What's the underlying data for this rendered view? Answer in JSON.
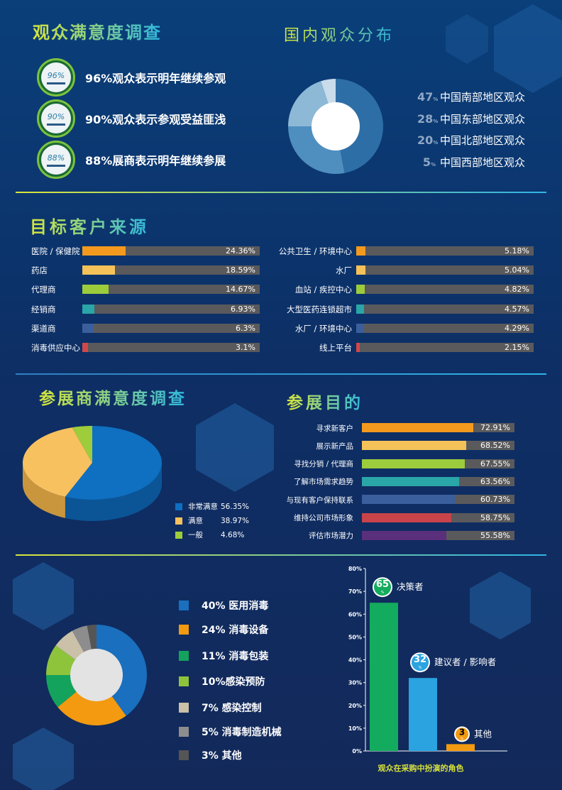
{
  "satisfaction": {
    "title": "观众满意度调查",
    "items": [
      {
        "badge": "96%",
        "text": "96%观众表示明年继续参观"
      },
      {
        "badge": "90%",
        "text": "90%观众表示参观受益匪浅"
      },
      {
        "badge": "88%",
        "text": "88%展商表示明年继续参展"
      }
    ]
  },
  "distribution": {
    "title": "国内观众分布",
    "items": [
      {
        "num": "47",
        "unit": "%",
        "label": "中国南部地区观众",
        "value": 47,
        "color": "#2e6ea6"
      },
      {
        "num": "28",
        "unit": "%",
        "label": "中国东部地区观众",
        "value": 28,
        "color": "#4f8fc0"
      },
      {
        "num": "20",
        "unit": "%",
        "label": "中国北部地区观众",
        "value": 20,
        "color": "#8db8d6"
      },
      {
        "num": "5",
        "unit": "%",
        "label": "中国西部地区观众",
        "value": 5,
        "color": "#c9dcec"
      }
    ]
  },
  "sources": {
    "title": "目标客户来源",
    "left": [
      {
        "label": "医院 / 保健院",
        "value": 24.36,
        "text": "24.36%",
        "color": "#f39a1e"
      },
      {
        "label": "药店",
        "value": 18.59,
        "text": "18.59%",
        "color": "#f5c25a"
      },
      {
        "label": "代理商",
        "value": 14.67,
        "text": "14.67%",
        "color": "#9ccc3c"
      },
      {
        "label": "经销商",
        "value": 6.93,
        "text": "6.93%",
        "color": "#2aa6a8"
      },
      {
        "label": "渠道商",
        "value": 6.3,
        "text": "6.3%",
        "color": "#3a5f9c"
      },
      {
        "label": "消毒供应中心",
        "value": 3.1,
        "text": "3.1%",
        "color": "#d2474a"
      }
    ],
    "right": [
      {
        "label": "公共卫生 / 环境中心",
        "value": 5.18,
        "text": "5.18%",
        "color": "#f39a1e"
      },
      {
        "label": "水厂",
        "value": 5.04,
        "text": "5.04%",
        "color": "#f5c25a"
      },
      {
        "label": "血站 / 疾控中心",
        "value": 4.82,
        "text": "4.82%",
        "color": "#9ccc3c"
      },
      {
        "label": "大型医药连锁超市",
        "value": 4.57,
        "text": "4.57%",
        "color": "#2aa6a8"
      },
      {
        "label": "水厂 / 环境中心",
        "value": 4.29,
        "text": "4.29%",
        "color": "#3a5f9c"
      },
      {
        "label": "线上平台",
        "value": 2.15,
        "text": "2.15%",
        "color": "#d2474a"
      }
    ]
  },
  "exhibitor": {
    "title": "参展商满意度调查",
    "slices": [
      {
        "name": "非常满意",
        "value": 56.35,
        "text": "56.35%",
        "color": "#0f6fc0",
        "side": "#0b5597"
      },
      {
        "name": "满意",
        "value": 38.97,
        "text": "38.97%",
        "color": "#f7c15f",
        "side": "#c9963e"
      },
      {
        "name": "一般",
        "value": 4.68,
        "text": "4.68%",
        "color": "#9dcd3a",
        "side": "#779c2a"
      }
    ]
  },
  "purpose": {
    "title": "参展目的",
    "items": [
      {
        "label": "寻求新客户",
        "value": 72.91,
        "text": "72.91%",
        "color": "#f39a1e"
      },
      {
        "label": "展示新产品",
        "value": 68.52,
        "text": "68.52%",
        "color": "#f5c25a"
      },
      {
        "label": "寻找分销 / 代理商",
        "value": 67.55,
        "text": "67.55%",
        "color": "#9ccc3c"
      },
      {
        "label": "了解市场需求趋势",
        "value": 63.56,
        "text": "63.56%",
        "color": "#2aa6a8"
      },
      {
        "label": "与现有客户保持联系",
        "value": 60.73,
        "text": "60.73%",
        "color": "#3a5f9c"
      },
      {
        "label": "维持公司市场形象",
        "value": 58.75,
        "text": "58.75%",
        "color": "#c8444a"
      },
      {
        "label": "评估市场潜力",
        "value": 55.58,
        "text": "55.58%",
        "color": "#5a2f7c"
      }
    ]
  },
  "categories": {
    "items": [
      {
        "label": "40% 医用消毒",
        "value": 40,
        "color": "#1a6fbe"
      },
      {
        "label": "24% 消毒设备",
        "value": 24,
        "color": "#f39a10"
      },
      {
        "label": "11% 消毒包装",
        "value": 11,
        "color": "#14a35c"
      },
      {
        "label": "10%感染预防",
        "value": 10,
        "color": "#8ec43b"
      },
      {
        "label": "7% 感染控制",
        "value": 7,
        "color": "#cbc0a8"
      },
      {
        "label": "5% 消毒制造机械",
        "value": 5,
        "color": "#8d8d8d"
      },
      {
        "label": "3% 其他",
        "value": 3,
        "color": "#555555"
      }
    ]
  },
  "chart_data": {
    "type": "bar",
    "title": "观众在采购中扮演的角色",
    "categories": [
      "决策者",
      "建议者 / 影响者",
      "其他"
    ],
    "values": [
      65,
      32,
      3
    ],
    "badges": [
      "65",
      "32",
      "3"
    ],
    "badge_unit": "%",
    "colors": [
      "#13ab5d",
      "#2aa3e0",
      "#f39a10"
    ],
    "ylim": [
      0,
      80
    ],
    "yticks": [
      "0%",
      "10%",
      "20%",
      "30%",
      "40%",
      "50%",
      "60%",
      "70%",
      "80%"
    ]
  }
}
